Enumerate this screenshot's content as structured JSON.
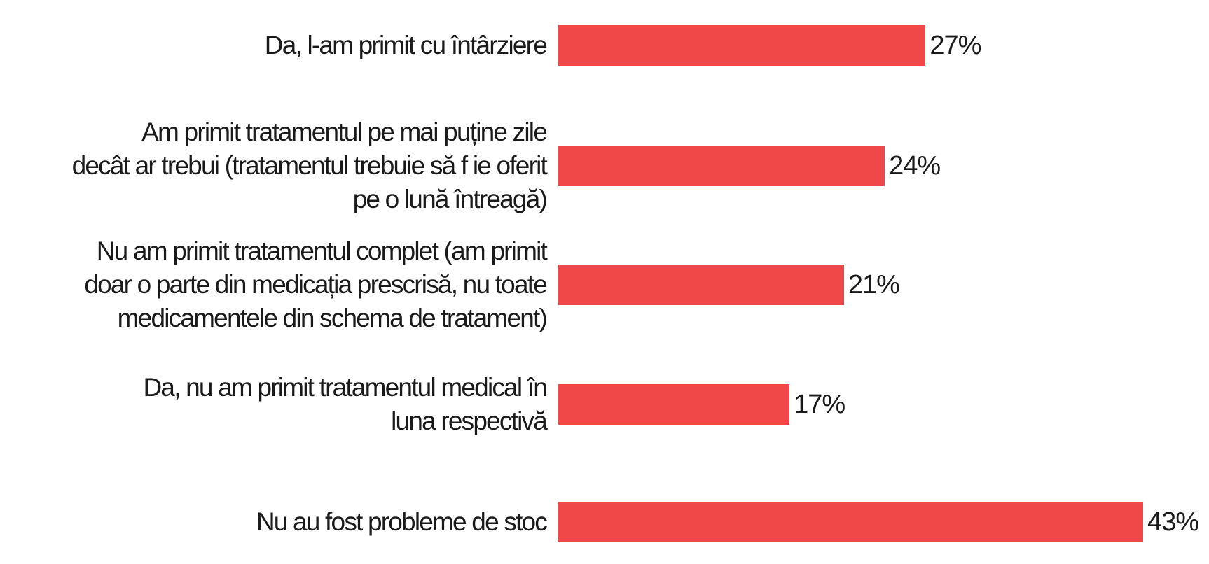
{
  "chart_data": {
    "type": "bar",
    "orientation": "horizontal",
    "categories": [
      "Da, l-am primit cu întârziere",
      "Am primit tratamentul pe mai puține zile decât ar trebui (tratamentul trebuie să f ie oferit pe o lună întreagă)",
      "Nu am primit tratamentul complet (am primit doar o parte din medicația prescrisă, nu toate medicamentele din schema de tratament)",
      "Da, nu am primit tratamentul medical în luna respectivă",
      "Nu au fost probleme de stoc"
    ],
    "values": [
      27,
      24,
      21,
      17,
      43
    ],
    "value_labels": [
      "27%",
      "24%",
      "21%",
      "17%",
      "43%"
    ],
    "unit": "%",
    "bar_color": "#f04848",
    "grid": false,
    "legend": "none"
  }
}
